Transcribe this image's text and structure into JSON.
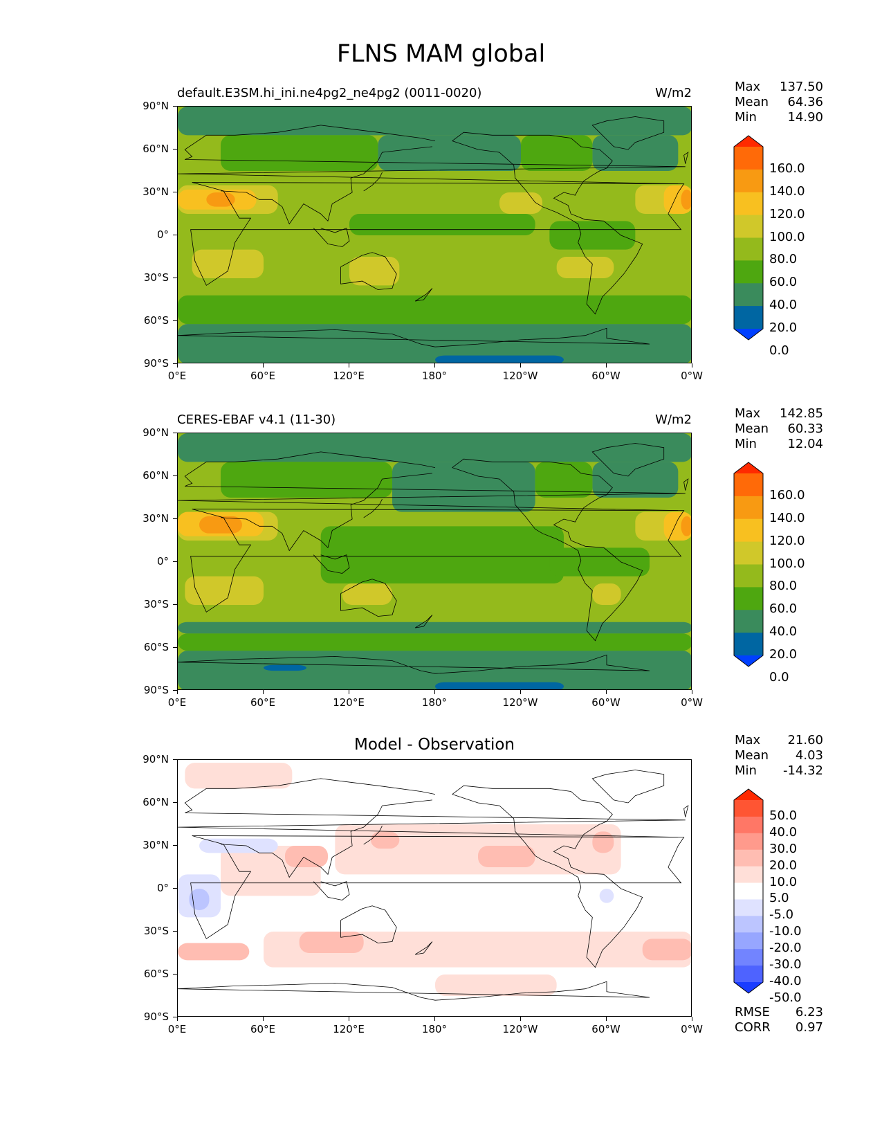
{
  "figure_title": "FLNS MAM global",
  "lat_labels": [
    "90°N",
    "60°N",
    "30°N",
    "0°",
    "30°S",
    "60°S",
    "90°S"
  ],
  "lon_labels": [
    "0°E",
    "60°E",
    "120°E",
    "180°",
    "120°W",
    "60°W",
    "0°W"
  ],
  "panels": [
    {
      "title_left": "default.E3SM.hi_ini.ne4pg2_ne4pg2 (0011-0020)",
      "title_right": "W/m2",
      "title_center": "",
      "stats": {
        "max_label": "Max",
        "max": "137.50",
        "mean_label": "Mean",
        "mean": "64.36",
        "min_label": "Min",
        "min": "14.90"
      },
      "colorbar": {
        "labels": [
          "160.0",
          "140.0",
          "120.0",
          "100.0",
          "80.0",
          "60.0",
          "40.0",
          "20.0",
          "0.0"
        ],
        "colors": [
          "#ff2a00",
          "#ff6a08",
          "#f89a12",
          "#f8c020",
          "#d0c82a",
          "#94ba1c",
          "#4ea710",
          "#3a8b5c",
          "#0066a2",
          "#0040ff"
        ]
      }
    },
    {
      "title_left": "CERES-EBAF v4.1 (11-30)",
      "title_right": "W/m2",
      "title_center": "",
      "stats": {
        "max_label": "Max",
        "max": "142.85",
        "mean_label": "Mean",
        "mean": "60.33",
        "min_label": "Min",
        "min": "12.04"
      },
      "colorbar": {
        "labels": [
          "160.0",
          "140.0",
          "120.0",
          "100.0",
          "80.0",
          "60.0",
          "40.0",
          "20.0",
          "0.0"
        ],
        "colors": [
          "#ff2a00",
          "#ff6a08",
          "#f89a12",
          "#f8c020",
          "#d0c82a",
          "#94ba1c",
          "#4ea710",
          "#3a8b5c",
          "#0066a2",
          "#0040ff"
        ]
      }
    },
    {
      "title_left": "",
      "title_right": "",
      "title_center": "Model - Observation",
      "stats": {
        "max_label": "Max",
        "max": "21.60",
        "mean_label": "Mean",
        "mean": "4.03",
        "min_label": "Min",
        "min": "-14.32"
      },
      "colorbar": {
        "labels": [
          "50.0",
          "40.0",
          "30.0",
          "20.0",
          "10.0",
          "5.0",
          "-5.0",
          "-10.0",
          "-20.0",
          "-30.0",
          "-40.0",
          "-50.0"
        ],
        "colors": [
          "#ff2a00",
          "#ff5533",
          "#ff7766",
          "#ff9a8c",
          "#ffbdb2",
          "#ffdfd8",
          "#ffffff",
          "#dfe2ff",
          "#bcc5ff",
          "#97a6ff",
          "#7284ff",
          "#4e63ff",
          "#1a3cff"
        ]
      },
      "rmse_label": "RMSE",
      "rmse": "6.23",
      "corr_label": "CORR",
      "corr": "0.97"
    }
  ],
  "map_fields": [
    {
      "base": "#94ba1c",
      "regions": [
        {
          "level": "40",
          "color": "#3a8b5c",
          "lon": [
            0,
            360
          ],
          "lat": [
            70,
            90
          ]
        },
        {
          "level": "40",
          "color": "#3a8b5c",
          "lon": [
            0,
            360
          ],
          "lat": [
            -90,
            -62
          ]
        },
        {
          "level": "40",
          "color": "#3a8b5c",
          "lon": [
            140,
            240
          ],
          "lat": [
            45,
            70
          ]
        },
        {
          "level": "40",
          "color": "#3a8b5c",
          "lon": [
            290,
            350
          ],
          "lat": [
            45,
            70
          ]
        },
        {
          "level": "60",
          "color": "#4ea710",
          "lon": [
            0,
            360
          ],
          "lat": [
            -62,
            -42
          ]
        },
        {
          "level": "60",
          "color": "#4ea710",
          "lon": [
            30,
            140
          ],
          "lat": [
            45,
            70
          ]
        },
        {
          "level": "60",
          "color": "#4ea710",
          "lon": [
            240,
            290
          ],
          "lat": [
            45,
            70
          ]
        },
        {
          "level": "60",
          "color": "#4ea710",
          "lon": [
            120,
            250
          ],
          "lat": [
            0,
            15
          ]
        },
        {
          "level": "60",
          "color": "#4ea710",
          "lon": [
            260,
            320
          ],
          "lat": [
            -10,
            10
          ]
        },
        {
          "level": "20",
          "color": "#0066a2",
          "lon": [
            180,
            270
          ],
          "lat": [
            -90,
            -84
          ]
        },
        {
          "level": "80",
          "color": "#d0c82a",
          "lon": [
            10,
            60
          ],
          "lat": [
            -30,
            -10
          ]
        },
        {
          "level": "80",
          "color": "#d0c82a",
          "lon": [
            120,
            155
          ],
          "lat": [
            -35,
            -15
          ]
        },
        {
          "level": "80",
          "color": "#d0c82a",
          "lon": [
            265,
            305
          ],
          "lat": [
            -30,
            -15
          ]
        },
        {
          "level": "80",
          "color": "#d0c82a",
          "lon": [
            225,
            255
          ],
          "lat": [
            15,
            30
          ]
        },
        {
          "level": "80",
          "color": "#d0c82a",
          "lon": [
            0,
            70
          ],
          "lat": [
            15,
            35
          ]
        },
        {
          "level": "80",
          "color": "#d0c82a",
          "lon": [
            320,
            360
          ],
          "lat": [
            15,
            35
          ]
        },
        {
          "level": "100",
          "color": "#f8c020",
          "lon": [
            0,
            55
          ],
          "lat": [
            18,
            32
          ]
        },
        {
          "level": "100",
          "color": "#f8c020",
          "lon": [
            340,
            360
          ],
          "lat": [
            15,
            35
          ]
        },
        {
          "level": "120",
          "color": "#f89a12",
          "lon": [
            20,
            40
          ],
          "lat": [
            20,
            30
          ]
        },
        {
          "level": "120",
          "color": "#f89a12",
          "lon": [
            352,
            360
          ],
          "lat": [
            18,
            32
          ]
        }
      ]
    },
    {
      "base": "#94ba1c",
      "regions": [
        {
          "level": "40",
          "color": "#3a8b5c",
          "lon": [
            0,
            360
          ],
          "lat": [
            70,
            90
          ]
        },
        {
          "level": "40",
          "color": "#3a8b5c",
          "lon": [
            0,
            360
          ],
          "lat": [
            -90,
            -62
          ]
        },
        {
          "level": "40",
          "color": "#3a8b5c",
          "lon": [
            150,
            250
          ],
          "lat": [
            35,
            70
          ]
        },
        {
          "level": "40",
          "color": "#3a8b5c",
          "lon": [
            290,
            350
          ],
          "lat": [
            45,
            70
          ]
        },
        {
          "level": "40",
          "color": "#3a8b5c",
          "lon": [
            0,
            360
          ],
          "lat": [
            -50,
            -42
          ]
        },
        {
          "level": "60",
          "color": "#4ea710",
          "lon": [
            0,
            360
          ],
          "lat": [
            -62,
            -50
          ]
        },
        {
          "level": "60",
          "color": "#4ea710",
          "lon": [
            30,
            150
          ],
          "lat": [
            45,
            70
          ]
        },
        {
          "level": "60",
          "color": "#4ea710",
          "lon": [
            250,
            290
          ],
          "lat": [
            45,
            70
          ]
        },
        {
          "level": "60",
          "color": "#4ea710",
          "lon": [
            100,
            270
          ],
          "lat": [
            -15,
            25
          ]
        },
        {
          "level": "60",
          "color": "#4ea710",
          "lon": [
            260,
            330
          ],
          "lat": [
            -10,
            10
          ]
        },
        {
          "level": "20",
          "color": "#0066a2",
          "lon": [
            180,
            270
          ],
          "lat": [
            -90,
            -84
          ]
        },
        {
          "level": "20",
          "color": "#0066a2",
          "lon": [
            60,
            90
          ],
          "lat": [
            -76,
            -72
          ]
        },
        {
          "level": "80",
          "color": "#d0c82a",
          "lon": [
            5,
            60
          ],
          "lat": [
            -30,
            -10
          ]
        },
        {
          "level": "80",
          "color": "#d0c82a",
          "lon": [
            115,
            150
          ],
          "lat": [
            -30,
            -15
          ]
        },
        {
          "level": "80",
          "color": "#d0c82a",
          "lon": [
            290,
            310
          ],
          "lat": [
            -30,
            -15
          ]
        },
        {
          "level": "80",
          "color": "#d0c82a",
          "lon": [
            0,
            70
          ],
          "lat": [
            15,
            35
          ]
        },
        {
          "level": "80",
          "color": "#d0c82a",
          "lon": [
            320,
            360
          ],
          "lat": [
            15,
            35
          ]
        },
        {
          "level": "100",
          "color": "#f8c020",
          "lon": [
            0,
            60
          ],
          "lat": [
            18,
            35
          ]
        },
        {
          "level": "100",
          "color": "#f8c020",
          "lon": [
            340,
            360
          ],
          "lat": [
            15,
            35
          ]
        },
        {
          "level": "120",
          "color": "#f89a12",
          "lon": [
            15,
            45
          ],
          "lat": [
            20,
            32
          ]
        },
        {
          "level": "120",
          "color": "#f89a12",
          "lon": [
            352,
            360
          ],
          "lat": [
            18,
            32
          ]
        }
      ]
    },
    {
      "base": "#ffffff",
      "regions": [
        {
          "level": "5",
          "color": "#ffdfd8",
          "lon": [
            5,
            80
          ],
          "lat": [
            70,
            88
          ]
        },
        {
          "level": "5",
          "color": "#ffdfd8",
          "lon": [
            110,
            310
          ],
          "lat": [
            10,
            45
          ]
        },
        {
          "level": "5",
          "color": "#ffdfd8",
          "lon": [
            60,
            360
          ],
          "lat": [
            -55,
            -30
          ]
        },
        {
          "level": "5",
          "color": "#ffdfd8",
          "lon": [
            30,
            100
          ],
          "lat": [
            -5,
            30
          ]
        },
        {
          "level": "5",
          "color": "#ffdfd8",
          "lon": [
            180,
            265
          ],
          "lat": [
            -75,
            -60
          ]
        },
        {
          "level": "10",
          "color": "#ffbdb2",
          "lon": [
            75,
            105
          ],
          "lat": [
            15,
            30
          ]
        },
        {
          "level": "10",
          "color": "#ffbdb2",
          "lon": [
            135,
            155
          ],
          "lat": [
            28,
            40
          ]
        },
        {
          "level": "10",
          "color": "#ffbdb2",
          "lon": [
            210,
            250
          ],
          "lat": [
            15,
            30
          ]
        },
        {
          "level": "10",
          "color": "#ffbdb2",
          "lon": [
            290,
            305
          ],
          "lat": [
            25,
            40
          ]
        },
        {
          "level": "10",
          "color": "#ffbdb2",
          "lon": [
            85,
            130
          ],
          "lat": [
            -45,
            -30
          ]
        },
        {
          "level": "10",
          "color": "#ffbdb2",
          "lon": [
            325,
            360
          ],
          "lat": [
            -50,
            -35
          ]
        },
        {
          "level": "10",
          "color": "#ffbdb2",
          "lon": [
            0,
            50
          ],
          "lat": [
            -50,
            -38
          ]
        },
        {
          "level": "-5",
          "color": "#dfe2ff",
          "lon": [
            0,
            30
          ],
          "lat": [
            -20,
            10
          ]
        },
        {
          "level": "-5",
          "color": "#dfe2ff",
          "lon": [
            15,
            70
          ],
          "lat": [
            25,
            35
          ]
        },
        {
          "level": "-5",
          "color": "#dfe2ff",
          "lon": [
            295,
            305
          ],
          "lat": [
            -10,
            0
          ]
        },
        {
          "level": "-10",
          "color": "#bcc5ff",
          "lon": [
            8,
            22
          ],
          "lat": [
            -15,
            0
          ]
        }
      ]
    }
  ]
}
